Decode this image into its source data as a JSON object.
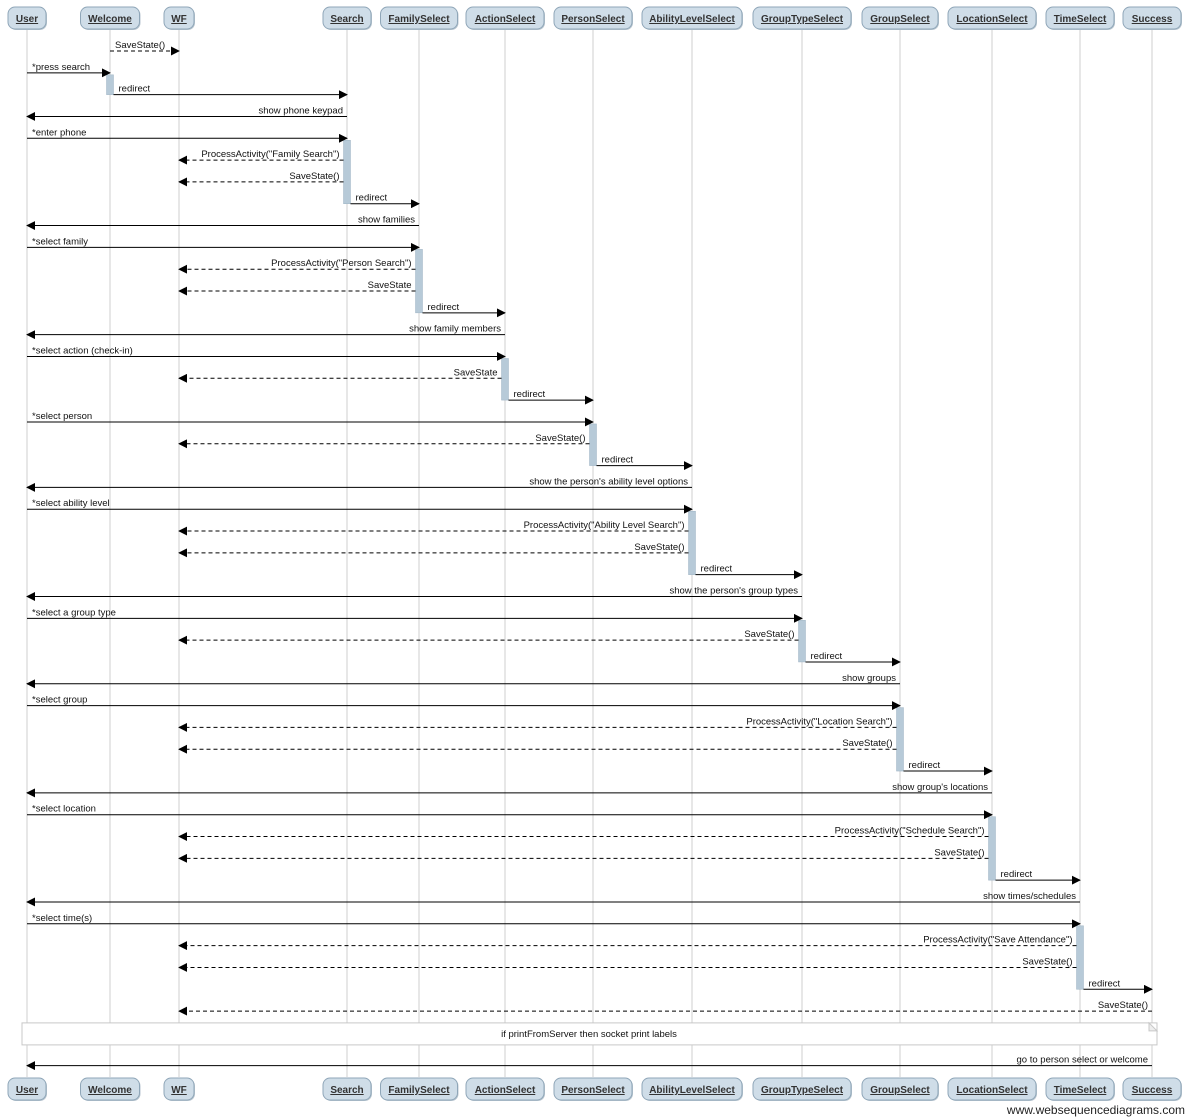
{
  "participants": [
    "User",
    "Welcome",
    "WF",
    "Search",
    "FamilySelect",
    "ActionSelect",
    "PersonSelect",
    "AbilityLevelSelect",
    "GroupTypeSelect",
    "GroupSelect",
    "LocationSelect",
    "TimeSelect",
    "Success"
  ],
  "colors": {
    "participant_fill": "#cfdde8",
    "participant_border": "#8fa6b8",
    "activation_fill": "#b7cad8",
    "lifeline": "#cfcfcf"
  },
  "messages": [
    {
      "from": "Welcome",
      "to": "WF",
      "label": "SaveState()",
      "style": "dashed"
    },
    {
      "from": "User",
      "to": "Welcome",
      "label": "*press search",
      "style": "solid"
    },
    {
      "from": "Welcome",
      "to": "Search",
      "label": "redirect",
      "style": "solid"
    },
    {
      "from": "Search",
      "to": "User",
      "label": "show phone keypad",
      "style": "solid"
    },
    {
      "from": "User",
      "to": "Search",
      "label": "*enter phone",
      "style": "solid"
    },
    {
      "from": "Search",
      "to": "WF",
      "label": "ProcessActivity(\"Family Search\")",
      "style": "dashed"
    },
    {
      "from": "Search",
      "to": "WF",
      "label": "SaveState()",
      "style": "dashed"
    },
    {
      "from": "Search",
      "to": "FamilySelect",
      "label": "redirect",
      "style": "solid"
    },
    {
      "from": "FamilySelect",
      "to": "User",
      "label": "show families",
      "style": "solid"
    },
    {
      "from": "User",
      "to": "FamilySelect",
      "label": "*select family",
      "style": "solid"
    },
    {
      "from": "FamilySelect",
      "to": "WF",
      "label": "ProcessActivity(\"Person Search\")",
      "style": "dashed"
    },
    {
      "from": "FamilySelect",
      "to": "WF",
      "label": "SaveState",
      "style": "dashed"
    },
    {
      "from": "FamilySelect",
      "to": "ActionSelect",
      "label": "redirect",
      "style": "solid"
    },
    {
      "from": "ActionSelect",
      "to": "User",
      "label": "show family members",
      "style": "solid"
    },
    {
      "from": "User",
      "to": "ActionSelect",
      "label": "*select action (check-in)",
      "style": "solid"
    },
    {
      "from": "ActionSelect",
      "to": "WF",
      "label": "SaveState",
      "style": "dashed"
    },
    {
      "from": "ActionSelect",
      "to": "PersonSelect",
      "label": "redirect",
      "style": "solid"
    },
    {
      "from": "User",
      "to": "PersonSelect",
      "label": "*select person",
      "style": "solid"
    },
    {
      "from": "PersonSelect",
      "to": "WF",
      "label": "SaveState()",
      "style": "dashed"
    },
    {
      "from": "PersonSelect",
      "to": "AbilityLevelSelect",
      "label": "redirect",
      "style": "solid"
    },
    {
      "from": "AbilityLevelSelect",
      "to": "User",
      "label": "show the person's ability level options",
      "style": "solid"
    },
    {
      "from": "User",
      "to": "AbilityLevelSelect",
      "label": "*select ability level",
      "style": "solid"
    },
    {
      "from": "AbilityLevelSelect",
      "to": "WF",
      "label": "ProcessActivity(\"Ability Level Search\")",
      "style": "dashed"
    },
    {
      "from": "AbilityLevelSelect",
      "to": "WF",
      "label": "SaveState()",
      "style": "dashed"
    },
    {
      "from": "AbilityLevelSelect",
      "to": "GroupTypeSelect",
      "label": "redirect",
      "style": "solid"
    },
    {
      "from": "GroupTypeSelect",
      "to": "User",
      "label": "show the person's group types",
      "style": "solid"
    },
    {
      "from": "User",
      "to": "GroupTypeSelect",
      "label": "*select a group type",
      "style": "solid"
    },
    {
      "from": "GroupTypeSelect",
      "to": "WF",
      "label": "SaveState()",
      "style": "dashed"
    },
    {
      "from": "GroupTypeSelect",
      "to": "GroupSelect",
      "label": "redirect",
      "style": "solid"
    },
    {
      "from": "GroupSelect",
      "to": "User",
      "label": "show groups",
      "style": "solid"
    },
    {
      "from": "User",
      "to": "GroupSelect",
      "label": "*select group",
      "style": "solid"
    },
    {
      "from": "GroupSelect",
      "to": "WF",
      "label": "ProcessActivity(\"Location Search\")",
      "style": "dashed"
    },
    {
      "from": "GroupSelect",
      "to": "WF",
      "label": "SaveState()",
      "style": "dashed"
    },
    {
      "from": "GroupSelect",
      "to": "LocationSelect",
      "label": "redirect",
      "style": "solid"
    },
    {
      "from": "LocationSelect",
      "to": "User",
      "label": "show group's locations",
      "style": "solid"
    },
    {
      "from": "User",
      "to": "LocationSelect",
      "label": "*select location",
      "style": "solid"
    },
    {
      "from": "LocationSelect",
      "to": "WF",
      "label": "ProcessActivity(\"Schedule Search\")",
      "style": "dashed"
    },
    {
      "from": "LocationSelect",
      "to": "WF",
      "label": "SaveState()",
      "style": "dashed"
    },
    {
      "from": "LocationSelect",
      "to": "TimeSelect",
      "label": "redirect",
      "style": "solid"
    },
    {
      "from": "TimeSelect",
      "to": "User",
      "label": "show times/schedules",
      "style": "solid"
    },
    {
      "from": "User",
      "to": "TimeSelect",
      "label": "*select time(s)",
      "style": "solid"
    },
    {
      "from": "TimeSelect",
      "to": "WF",
      "label": "ProcessActivity(\"Save Attendance\")",
      "style": "dashed"
    },
    {
      "from": "TimeSelect",
      "to": "WF",
      "label": "SaveState()",
      "style": "dashed"
    },
    {
      "from": "TimeSelect",
      "to": "Success",
      "label": "redirect",
      "style": "solid"
    },
    {
      "from": "Success",
      "to": "WF",
      "label": "SaveState()",
      "style": "dashed"
    },
    {
      "note": "if printFromServer then socket print labels"
    },
    {
      "from": "Success",
      "to": "User",
      "label": "go to person select or welcome",
      "style": "solid"
    }
  ],
  "activations": [
    {
      "on": "Welcome",
      "from_msg": 2,
      "to_msg": 2
    },
    {
      "on": "Search",
      "from_msg": 5,
      "to_msg": 7
    },
    {
      "on": "FamilySelect",
      "from_msg": 10,
      "to_msg": 12
    },
    {
      "on": "ActionSelect",
      "from_msg": 15,
      "to_msg": 16
    },
    {
      "on": "PersonSelect",
      "from_msg": 18,
      "to_msg": 19
    },
    {
      "on": "AbilityLevelSelect",
      "from_msg": 22,
      "to_msg": 24
    },
    {
      "on": "GroupTypeSelect",
      "from_msg": 27,
      "to_msg": 28
    },
    {
      "on": "GroupSelect",
      "from_msg": 31,
      "to_msg": 33
    },
    {
      "on": "LocationSelect",
      "from_msg": 36,
      "to_msg": 38
    },
    {
      "on": "TimeSelect",
      "from_msg": 41,
      "to_msg": 43
    }
  ],
  "watermark": "www.websequencediagrams.com"
}
